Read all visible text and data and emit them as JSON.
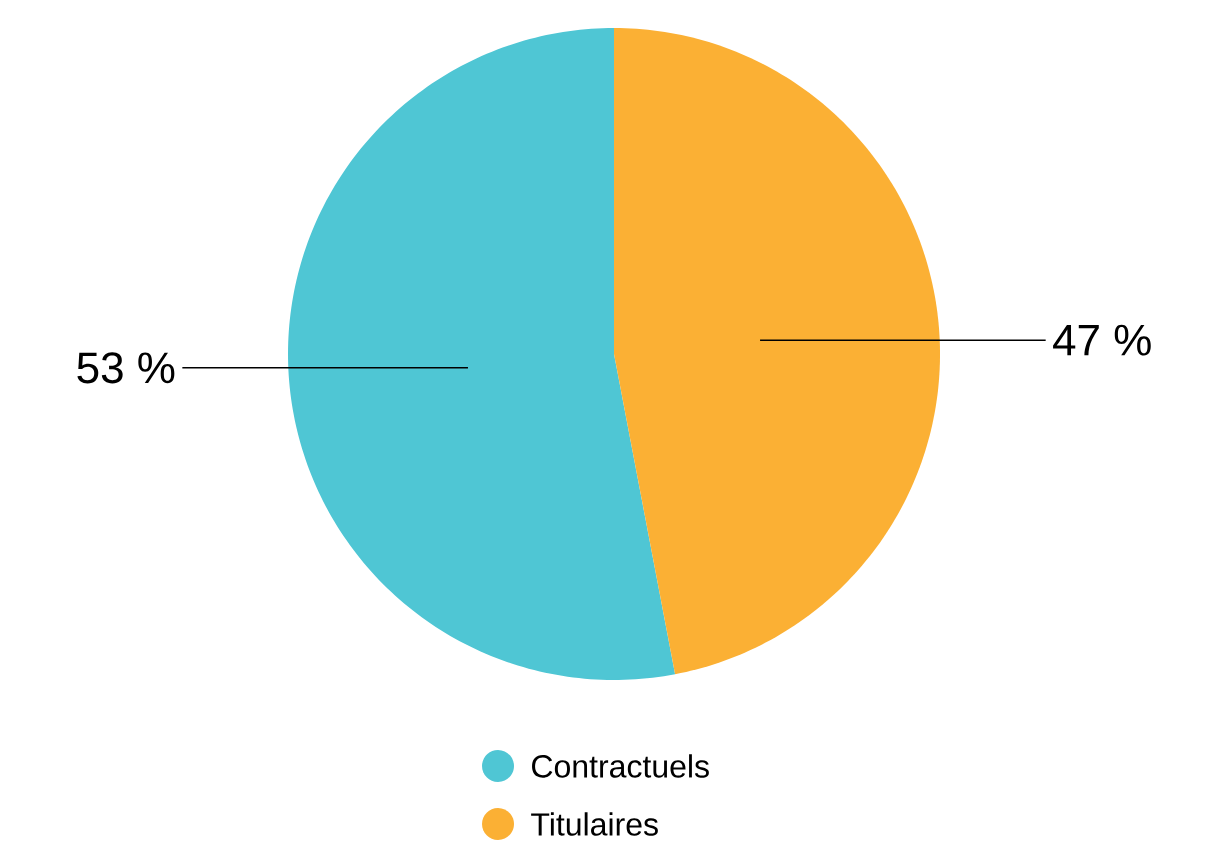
{
  "chart_data": {
    "type": "pie",
    "categories": [
      "Contractuels",
      "Titulaires"
    ],
    "values": [
      53,
      47
    ],
    "colors": [
      "#4fc6d4",
      "#fbb034"
    ],
    "value_labels": [
      "53 %",
      "47 %"
    ],
    "legend": "bottom"
  }
}
